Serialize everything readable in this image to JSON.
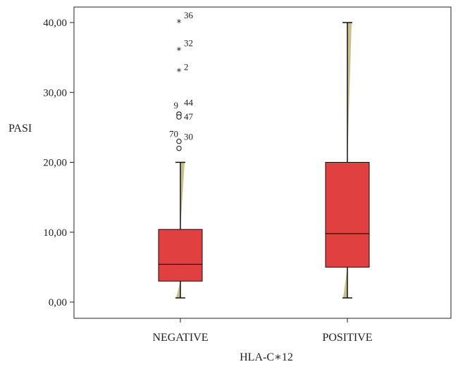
{
  "chart_data": {
    "type": "boxplot",
    "xlabel": "HLA-C∗12",
    "ylabel": "PASI",
    "ylim": [
      0,
      40
    ],
    "yticks": [
      "0,00",
      "10,00",
      "20,00",
      "30,00",
      "40,00"
    ],
    "grid": false,
    "colors": {
      "box": "#e04040",
      "whisker_wedge": "#c8c08a",
      "line": "#111111"
    },
    "categories": [
      "NEGATIVE",
      "POSITIVE"
    ],
    "boxes": [
      {
        "category": "NEGATIVE",
        "min": 0.6,
        "q1": 3.0,
        "median": 5.4,
        "q3": 10.4,
        "max": 20.0,
        "outliers": [
          {
            "label": "36",
            "value": 40.0,
            "marker": "star"
          },
          {
            "label": "32",
            "value": 36.0,
            "marker": "star"
          },
          {
            "label": "2",
            "value": 33.0,
            "marker": "star"
          },
          {
            "label": "9",
            "value": 26.9,
            "marker": "circle"
          },
          {
            "label": "44",
            "value": 26.9,
            "marker": "circle"
          },
          {
            "label": "47",
            "value": 26.5,
            "marker": "circle"
          },
          {
            "label": "70",
            "value": 23.0,
            "marker": "circle"
          },
          {
            "label": "30",
            "value": 22.0,
            "marker": "circle"
          }
        ]
      },
      {
        "category": "POSITIVE",
        "min": 0.6,
        "q1": 5.0,
        "median": 9.8,
        "q3": 20.0,
        "max": 40.0,
        "outliers": []
      }
    ]
  }
}
